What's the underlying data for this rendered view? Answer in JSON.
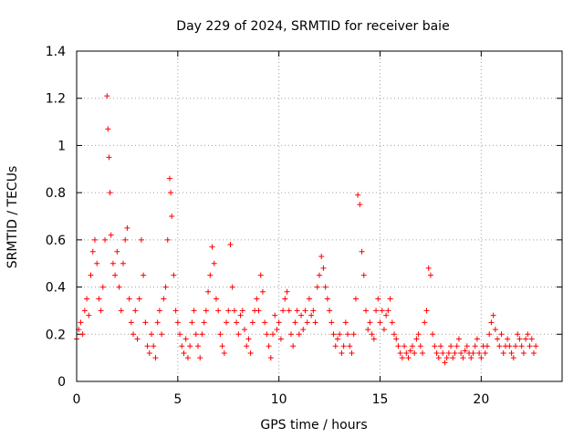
{
  "chart_data": {
    "type": "scatter",
    "title": "Day 229 of 2024, SRMTID for receiver baie",
    "xlabel": "GPS time / hours",
    "ylabel": "SRMTID / TECUs",
    "xlim": [
      0,
      24
    ],
    "ylim": [
      0,
      1.4
    ],
    "xticks": [
      0,
      5,
      10,
      15,
      20
    ],
    "yticks": [
      0,
      0.2,
      0.4,
      0.6,
      0.8,
      1.0,
      1.2,
      1.4
    ],
    "xtick_labels": [
      "0",
      "5",
      "10",
      "15",
      "20"
    ],
    "ytick_labels": [
      "0",
      "0.2",
      "0.4",
      "0.6",
      "0.8",
      "1",
      "1.2",
      "1.4"
    ],
    "grid": true,
    "marker": "+",
    "color": "#ff0000",
    "series": [
      {
        "name": "SRMTID",
        "x": [
          0.0,
          0.1,
          0.2,
          0.3,
          0.4,
          0.5,
          0.6,
          0.7,
          0.8,
          0.9,
          1.0,
          1.1,
          1.2,
          1.3,
          1.4,
          1.5,
          1.55,
          1.6,
          1.65,
          1.7,
          1.8,
          1.9,
          2.0,
          2.1,
          2.2,
          2.3,
          2.4,
          2.5,
          2.6,
          2.7,
          2.8,
          2.9,
          3.0,
          3.1,
          3.2,
          3.3,
          3.4,
          3.5,
          3.6,
          3.7,
          3.8,
          3.9,
          4.0,
          4.1,
          4.2,
          4.3,
          4.4,
          4.5,
          4.6,
          4.65,
          4.7,
          4.8,
          4.9,
          5.0,
          5.1,
          5.2,
          5.3,
          5.4,
          5.5,
          5.6,
          5.7,
          5.8,
          5.9,
          6.0,
          6.1,
          6.2,
          6.3,
          6.4,
          6.5,
          6.6,
          6.7,
          6.8,
          6.9,
          7.0,
          7.1,
          7.2,
          7.3,
          7.4,
          7.5,
          7.6,
          7.7,
          7.8,
          7.9,
          8.0,
          8.1,
          8.2,
          8.3,
          8.4,
          8.5,
          8.6,
          8.7,
          8.8,
          8.9,
          9.0,
          9.1,
          9.2,
          9.3,
          9.4,
          9.5,
          9.6,
          9.7,
          9.8,
          9.9,
          10.0,
          10.1,
          10.2,
          10.3,
          10.4,
          10.5,
          10.6,
          10.7,
          10.8,
          10.9,
          11.0,
          11.1,
          11.2,
          11.3,
          11.4,
          11.5,
          11.6,
          11.7,
          11.8,
          11.9,
          12.0,
          12.1,
          12.2,
          12.3,
          12.4,
          12.5,
          12.6,
          12.7,
          12.8,
          12.9,
          13.0,
          13.1,
          13.2,
          13.3,
          13.4,
          13.5,
          13.6,
          13.7,
          13.8,
          13.9,
          14.0,
          14.1,
          14.2,
          14.3,
          14.4,
          14.5,
          14.6,
          14.7,
          14.8,
          14.9,
          15.0,
          15.1,
          15.2,
          15.3,
          15.4,
          15.5,
          15.6,
          15.7,
          15.8,
          15.9,
          16.0,
          16.1,
          16.2,
          16.3,
          16.4,
          16.5,
          16.6,
          16.7,
          16.8,
          16.9,
          17.0,
          17.1,
          17.2,
          17.3,
          17.4,
          17.5,
          17.6,
          17.7,
          17.8,
          17.9,
          18.0,
          18.1,
          18.2,
          18.3,
          18.4,
          18.5,
          18.6,
          18.7,
          18.8,
          18.9,
          19.0,
          19.1,
          19.2,
          19.3,
          19.4,
          19.5,
          19.6,
          19.7,
          19.8,
          19.9,
          20.0,
          20.1,
          20.2,
          20.3,
          20.4,
          20.5,
          20.6,
          20.7,
          20.8,
          20.9,
          21.0,
          21.1,
          21.2,
          21.3,
          21.4,
          21.5,
          21.6,
          21.7,
          21.8,
          21.9,
          22.0,
          22.1,
          22.2,
          22.3,
          22.4,
          22.5,
          22.6,
          22.7
        ],
        "y": [
          0.18,
          0.22,
          0.25,
          0.2,
          0.3,
          0.35,
          0.28,
          0.45,
          0.55,
          0.6,
          0.5,
          0.35,
          0.3,
          0.4,
          0.6,
          1.21,
          1.07,
          0.95,
          0.8,
          0.62,
          0.5,
          0.45,
          0.55,
          0.4,
          0.3,
          0.5,
          0.6,
          0.65,
          0.35,
          0.25,
          0.2,
          0.3,
          0.18,
          0.35,
          0.6,
          0.45,
          0.25,
          0.15,
          0.12,
          0.2,
          0.15,
          0.1,
          0.25,
          0.3,
          0.2,
          0.35,
          0.4,
          0.6,
          0.86,
          0.8,
          0.7,
          0.45,
          0.3,
          0.25,
          0.2,
          0.15,
          0.12,
          0.18,
          0.1,
          0.15,
          0.25,
          0.3,
          0.2,
          0.15,
          0.1,
          0.2,
          0.25,
          0.3,
          0.38,
          0.45,
          0.57,
          0.5,
          0.35,
          0.3,
          0.2,
          0.15,
          0.12,
          0.25,
          0.3,
          0.58,
          0.4,
          0.3,
          0.25,
          0.2,
          0.28,
          0.3,
          0.22,
          0.15,
          0.18,
          0.12,
          0.25,
          0.3,
          0.35,
          0.3,
          0.45,
          0.38,
          0.25,
          0.2,
          0.15,
          0.1,
          0.2,
          0.28,
          0.22,
          0.25,
          0.18,
          0.3,
          0.35,
          0.38,
          0.3,
          0.2,
          0.15,
          0.25,
          0.3,
          0.2,
          0.28,
          0.22,
          0.3,
          0.25,
          0.35,
          0.28,
          0.3,
          0.25,
          0.4,
          0.45,
          0.53,
          0.48,
          0.4,
          0.35,
          0.3,
          0.25,
          0.2,
          0.15,
          0.18,
          0.2,
          0.12,
          0.15,
          0.25,
          0.2,
          0.15,
          0.12,
          0.2,
          0.35,
          0.79,
          0.75,
          0.55,
          0.45,
          0.3,
          0.22,
          0.25,
          0.2,
          0.18,
          0.3,
          0.35,
          0.25,
          0.3,
          0.22,
          0.28,
          0.3,
          0.35,
          0.25,
          0.2,
          0.18,
          0.15,
          0.12,
          0.1,
          0.15,
          0.12,
          0.1,
          0.13,
          0.15,
          0.12,
          0.18,
          0.2,
          0.15,
          0.12,
          0.25,
          0.3,
          0.48,
          0.45,
          0.2,
          0.15,
          0.12,
          0.1,
          0.15,
          0.12,
          0.08,
          0.1,
          0.12,
          0.15,
          0.1,
          0.12,
          0.15,
          0.18,
          0.12,
          0.1,
          0.13,
          0.15,
          0.12,
          0.1,
          0.12,
          0.15,
          0.18,
          0.12,
          0.1,
          0.15,
          0.12,
          0.15,
          0.2,
          0.25,
          0.28,
          0.22,
          0.18,
          0.15,
          0.2,
          0.12,
          0.15,
          0.18,
          0.15,
          0.12,
          0.1,
          0.15,
          0.2,
          0.18,
          0.15,
          0.12,
          0.18,
          0.2,
          0.15,
          0.18,
          0.12,
          0.15
        ]
      }
    ]
  }
}
